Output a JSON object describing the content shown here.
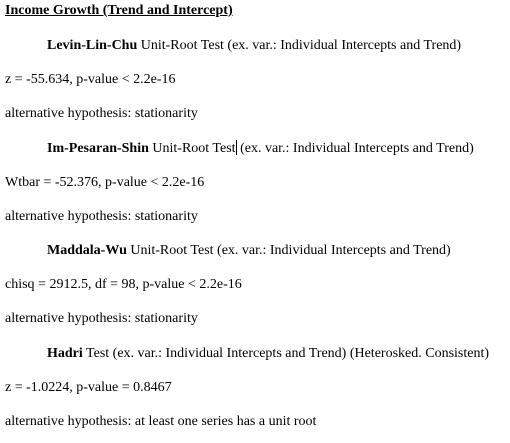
{
  "document": {
    "title": "Income Growth (Trend and Intercept)",
    "tests": [
      {
        "name": "Levin-Lin-Chu",
        "description": " Unit-Root Test (ex. var.: Individual Intercepts and Trend)",
        "statistic": "z = -55.634, p-value < 2.2e-16",
        "alternative": "alternative hypothesis: stationarity"
      },
      {
        "name": "Im-Pesaran-Shin",
        "description_before_cursor": " Unit-Root Test",
        "description_after_cursor": " (ex. var.: Individual Intercepts and Trend)",
        "statistic": "Wtbar = -52.376, p-value < 2.2e-16",
        "alternative": "alternative hypothesis: stationarity"
      },
      {
        "name": "Maddala-Wu",
        "description": " Unit-Root Test (ex. var.: Individual Intercepts and Trend)",
        "statistic": "chisq = 2912.5, df = 98, p-value < 2.2e-16",
        "alternative": "alternative hypothesis: stationarity"
      },
      {
        "name": "Hadri",
        "description": " Test (ex. var.: Individual Intercepts and Trend) (Heterosked. Consistent)",
        "statistic": "z = -1.0224, p-value = 0.8467",
        "alternative": "alternative hypothesis: at least one series has a unit root"
      }
    ]
  }
}
